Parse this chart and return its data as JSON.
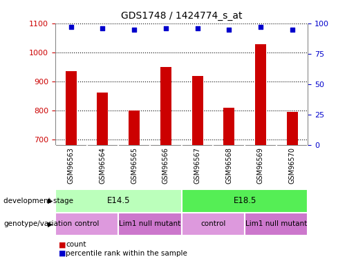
{
  "title": "GDS1748 / 1424774_s_at",
  "samples": [
    "GSM96563",
    "GSM96564",
    "GSM96565",
    "GSM96566",
    "GSM96567",
    "GSM96568",
    "GSM96569",
    "GSM96570"
  ],
  "counts": [
    935,
    862,
    800,
    950,
    918,
    808,
    1028,
    795
  ],
  "percentile_ranks": [
    97,
    96,
    95,
    96,
    96,
    95,
    97,
    95
  ],
  "ylim_left": [
    680,
    1100
  ],
  "ylim_right": [
    0,
    100
  ],
  "yticks_left": [
    700,
    800,
    900,
    1000,
    1100
  ],
  "yticks_right": [
    0,
    25,
    50,
    75,
    100
  ],
  "bar_color": "#cc0000",
  "dot_color": "#0000cc",
  "bar_bottom": 680,
  "development_stage_labels": [
    "E14.5",
    "E18.5"
  ],
  "development_stage_ranges": [
    [
      0,
      3
    ],
    [
      4,
      7
    ]
  ],
  "development_stage_colors": [
    "#bbffbb",
    "#55ee55"
  ],
  "genotype_labels": [
    "control",
    "Lim1 null mutant",
    "control",
    "Lim1 null mutant"
  ],
  "genotype_ranges": [
    [
      0,
      1
    ],
    [
      2,
      3
    ],
    [
      4,
      5
    ],
    [
      6,
      7
    ]
  ],
  "genotype_color_light": "#dd99dd",
  "genotype_color_dark": "#cc77cc",
  "background_color": "#ffffff",
  "left_axis_color": "#cc0000",
  "right_axis_color": "#0000cc",
  "sample_bg_color": "#cccccc",
  "bar_width": 0.35
}
